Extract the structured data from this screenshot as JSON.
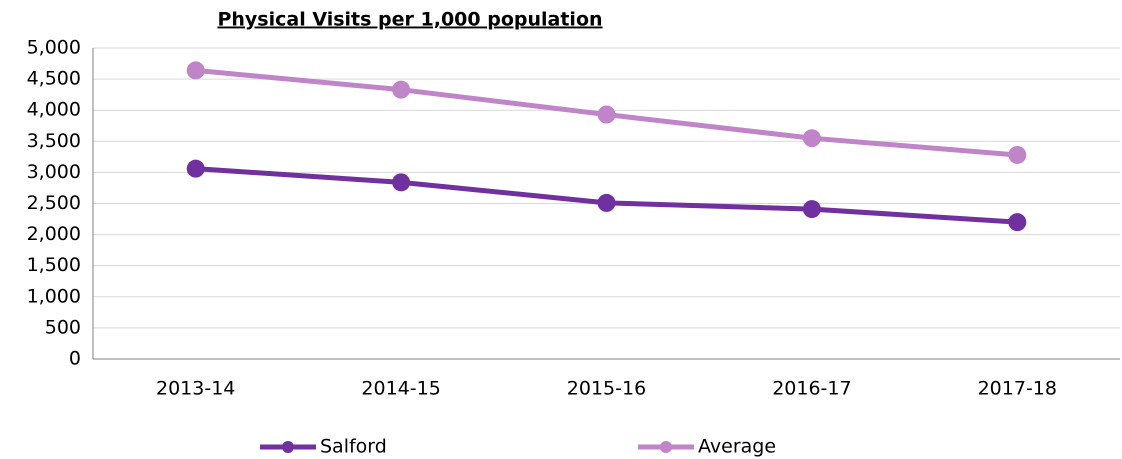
{
  "chart_data": {
    "type": "line",
    "title": "Physical Visits per 1,000 population",
    "categories": [
      "2013-14",
      "2014-15",
      "2015-16",
      "2016-17",
      "2017-18"
    ],
    "series": [
      {
        "name": "Salford",
        "color": "#7030a0",
        "values": [
          3060,
          2840,
          2510,
          2410,
          2200
        ]
      },
      {
        "name": "Average",
        "color": "#c084c8",
        "values": [
          4640,
          4330,
          3930,
          3550,
          3280
        ]
      }
    ],
    "ylim": [
      0,
      5000
    ],
    "yticks": [
      0,
      500,
      {
        "value": 1000,
        "label": "1,000"
      },
      {
        "value": 1500,
        "label": "1,500"
      },
      {
        "value": 2000,
        "label": "2,000"
      },
      {
        "value": 2500,
        "label": "2,500"
      },
      {
        "value": 3000,
        "label": "3,000"
      },
      {
        "value": 3500,
        "label": "3,500"
      },
      {
        "value": 4000,
        "label": "4,000"
      },
      {
        "value": 4500,
        "label": "4,500"
      },
      {
        "value": 5000,
        "label": "5,000"
      }
    ],
    "grid": true
  }
}
